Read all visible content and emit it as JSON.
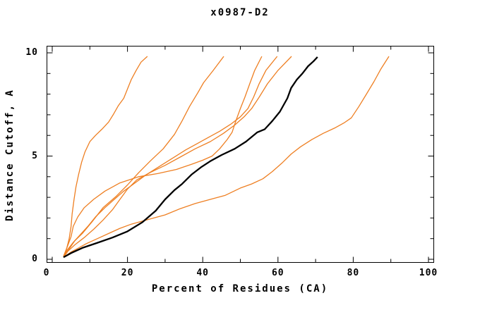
{
  "title": "x0987-D2",
  "x_axis": {
    "label": "Percent of Residues (CA)",
    "min": 0,
    "max": 100,
    "major_ticks": [
      0,
      20,
      40,
      60,
      80,
      100
    ],
    "minor_ticks": [
      10,
      30,
      50,
      70,
      90
    ],
    "tick_labels": [
      "0",
      "20",
      "40",
      "60",
      "80",
      "100"
    ]
  },
  "y_axis": {
    "label": "Distance Cutoff, A",
    "min": 0,
    "max": 10,
    "major_ticks": [
      0,
      5,
      10
    ],
    "minor_ticks": [
      1,
      2,
      3,
      4,
      6,
      7,
      8,
      9
    ],
    "tick_labels": [
      "0",
      "5",
      "10"
    ]
  },
  "colors": {
    "orange_line": "#ee7f22",
    "black_line": "#000000",
    "axis": "#000000",
    "background": "#ffffff"
  },
  "chart_data": {
    "type": "line",
    "title": "x0987-D2",
    "xlabel": "Percent of Residues (CA)",
    "ylabel": "Distance Cutoff, A",
    "xlim": [
      0,
      100
    ],
    "ylim": [
      0,
      10
    ],
    "grid": false,
    "legend": "none",
    "series": [
      {
        "name": "curve-1-orange-steep-left",
        "color": "#ee7f22",
        "width": 1.3,
        "points": [
          [
            3,
            0.1
          ],
          [
            3.8,
            0.5
          ],
          [
            4.5,
            1.0
          ],
          [
            5,
            1.6
          ],
          [
            5.3,
            2.2
          ],
          [
            5.8,
            2.9
          ],
          [
            6.3,
            3.5
          ],
          [
            7,
            4.1
          ],
          [
            7.8,
            4.7
          ],
          [
            8.7,
            5.2
          ],
          [
            10,
            5.7
          ],
          [
            11.5,
            6.0
          ],
          [
            13.2,
            6.3
          ],
          [
            15,
            6.65
          ],
          [
            16.2,
            7.0
          ],
          [
            17.6,
            7.45
          ],
          [
            19,
            7.8
          ],
          [
            20,
            8.25
          ],
          [
            21,
            8.7
          ],
          [
            22.3,
            9.15
          ],
          [
            23.6,
            9.55
          ],
          [
            25.3,
            9.83
          ]
        ]
      },
      {
        "name": "curve-2-orange",
        "color": "#ee7f22",
        "width": 1.3,
        "points": [
          [
            3,
            0.1
          ],
          [
            4.5,
            0.5
          ],
          [
            6,
            0.9
          ],
          [
            8,
            1.25
          ],
          [
            10.5,
            1.8
          ],
          [
            13.5,
            2.5
          ],
          [
            17,
            3.05
          ],
          [
            20,
            3.6
          ],
          [
            23,
            4.2
          ],
          [
            26,
            4.75
          ],
          [
            29.5,
            5.35
          ],
          [
            32.5,
            6.05
          ],
          [
            34.5,
            6.7
          ],
          [
            36.5,
            7.4
          ],
          [
            38.8,
            8.1
          ],
          [
            40.2,
            8.55
          ],
          [
            42.8,
            9.15
          ],
          [
            45.6,
            9.83
          ]
        ]
      },
      {
        "name": "curve-3-orange",
        "color": "#ee7f22",
        "width": 1.3,
        "points": [
          [
            3,
            0.15
          ],
          [
            4,
            0.6
          ],
          [
            5,
            1.1
          ],
          [
            5.6,
            1.6
          ],
          [
            6.8,
            2.05
          ],
          [
            8.5,
            2.5
          ],
          [
            11,
            2.9
          ],
          [
            14,
            3.3
          ],
          [
            18,
            3.7
          ],
          [
            23,
            4.0
          ],
          [
            28,
            4.15
          ],
          [
            33,
            4.35
          ],
          [
            37,
            4.6
          ],
          [
            40,
            4.8
          ],
          [
            42.5,
            5.0
          ],
          [
            44.5,
            5.35
          ],
          [
            46.5,
            5.8
          ],
          [
            47.8,
            6.15
          ],
          [
            48.8,
            6.7
          ],
          [
            50,
            7.3
          ],
          [
            51.2,
            7.85
          ],
          [
            52.5,
            8.5
          ],
          [
            53.8,
            9.15
          ],
          [
            55.7,
            9.83
          ]
        ]
      },
      {
        "name": "curve-4-orange",
        "color": "#ee7f22",
        "width": 1.3,
        "points": [
          [
            3,
            0.1
          ],
          [
            4,
            0.45
          ],
          [
            5.5,
            0.8
          ],
          [
            7.5,
            1.2
          ],
          [
            9.5,
            1.6
          ],
          [
            11.5,
            2.05
          ],
          [
            14,
            2.5
          ],
          [
            16.5,
            2.9
          ],
          [
            19,
            3.3
          ],
          [
            22,
            3.7
          ],
          [
            25,
            4.1
          ],
          [
            28.5,
            4.5
          ],
          [
            32,
            4.9
          ],
          [
            35.5,
            5.3
          ],
          [
            38.5,
            5.6
          ],
          [
            41.5,
            5.9
          ],
          [
            44.5,
            6.2
          ],
          [
            47.5,
            6.55
          ],
          [
            50,
            6.9
          ],
          [
            52,
            7.3
          ],
          [
            53.5,
            7.85
          ],
          [
            55,
            8.5
          ],
          [
            56.8,
            9.15
          ],
          [
            59.8,
            9.83
          ]
        ]
      },
      {
        "name": "curve-5-orange",
        "color": "#ee7f22",
        "width": 1.3,
        "points": [
          [
            3,
            0.1
          ],
          [
            4.2,
            0.4
          ],
          [
            6,
            0.7
          ],
          [
            8.5,
            1.05
          ],
          [
            11,
            1.45
          ],
          [
            13.5,
            1.9
          ],
          [
            16,
            2.4
          ],
          [
            18,
            2.9
          ],
          [
            20,
            3.4
          ],
          [
            22.5,
            3.85
          ],
          [
            26,
            4.2
          ],
          [
            30,
            4.55
          ],
          [
            34,
            4.95
          ],
          [
            38,
            5.35
          ],
          [
            42,
            5.7
          ],
          [
            45.5,
            6.1
          ],
          [
            48.5,
            6.5
          ],
          [
            51,
            6.9
          ],
          [
            53,
            7.3
          ],
          [
            55,
            7.85
          ],
          [
            57.2,
            8.5
          ],
          [
            60,
            9.15
          ],
          [
            63.6,
            9.83
          ]
        ]
      },
      {
        "name": "curve-6-orange-right-low",
        "color": "#ee7f22",
        "width": 1.3,
        "points": [
          [
            3,
            0.1
          ],
          [
            5,
            0.35
          ],
          [
            7,
            0.55
          ],
          [
            9,
            0.75
          ],
          [
            12,
            1.0
          ],
          [
            15,
            1.25
          ],
          [
            18,
            1.5
          ],
          [
            21,
            1.7
          ],
          [
            24,
            1.85
          ],
          [
            27,
            2.0
          ],
          [
            30,
            2.15
          ],
          [
            34,
            2.45
          ],
          [
            38,
            2.7
          ],
          [
            42,
            2.9
          ],
          [
            46,
            3.1
          ],
          [
            50,
            3.45
          ],
          [
            53,
            3.65
          ],
          [
            56,
            3.9
          ],
          [
            58.5,
            4.25
          ],
          [
            61,
            4.65
          ],
          [
            63.5,
            5.1
          ],
          [
            66,
            5.45
          ],
          [
            69,
            5.8
          ],
          [
            72,
            6.1
          ],
          [
            75,
            6.35
          ],
          [
            77.5,
            6.6
          ],
          [
            79.5,
            6.85
          ],
          [
            81.5,
            7.4
          ],
          [
            83.5,
            8.0
          ],
          [
            85.5,
            8.6
          ],
          [
            87.3,
            9.2
          ],
          [
            89.5,
            9.83
          ]
        ]
      },
      {
        "name": "curve-7-black",
        "color": "#000000",
        "width": 2.3,
        "points": [
          [
            3,
            0.1
          ],
          [
            5,
            0.3
          ],
          [
            8,
            0.55
          ],
          [
            12,
            0.8
          ],
          [
            16,
            1.05
          ],
          [
            20,
            1.35
          ],
          [
            24,
            1.8
          ],
          [
            27.5,
            2.35
          ],
          [
            30,
            2.9
          ],
          [
            32.5,
            3.35
          ],
          [
            34.5,
            3.65
          ],
          [
            37,
            4.1
          ],
          [
            39.5,
            4.45
          ],
          [
            42,
            4.75
          ],
          [
            45,
            5.05
          ],
          [
            48.5,
            5.35
          ],
          [
            51.5,
            5.7
          ],
          [
            54.5,
            6.15
          ],
          [
            56.5,
            6.3
          ],
          [
            58.5,
            6.7
          ],
          [
            60.5,
            7.15
          ],
          [
            62.5,
            7.8
          ],
          [
            63.5,
            8.3
          ],
          [
            65,
            8.7
          ],
          [
            66.5,
            9.0
          ],
          [
            68,
            9.35
          ],
          [
            69.5,
            9.6
          ],
          [
            70.5,
            9.8
          ]
        ]
      }
    ]
  }
}
